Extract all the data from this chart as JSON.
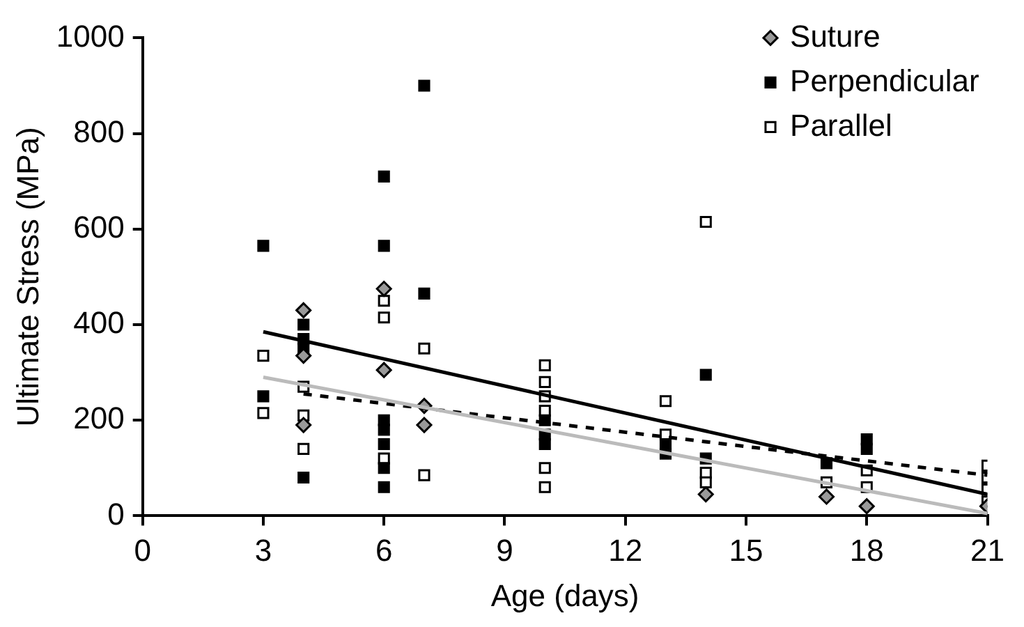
{
  "chart_data": {
    "type": "scatter",
    "xlabel": "Age (days)",
    "ylabel": "Ultimate Stress (MPa)",
    "xlim": [
      0,
      21
    ],
    "xticks": [
      0,
      3,
      6,
      9,
      12,
      15,
      18,
      21
    ],
    "ylim": [
      0,
      1000
    ],
    "yticks": [
      0,
      200,
      400,
      600,
      800,
      1000
    ],
    "grid": false,
    "legend": "top right",
    "series": [
      {
        "name": "Suture",
        "color": "#999999",
        "marker": "diamond",
        "x": [
          4,
          4,
          4,
          6,
          6,
          7,
          7,
          14,
          17,
          18,
          21
        ],
        "values": [
          430,
          335,
          190,
          475,
          305,
          230,
          190,
          45,
          40,
          20,
          20
        ]
      },
      {
        "name": "Perpendicular",
        "color": "#000000",
        "marker": "square",
        "x": [
          3,
          3,
          4,
          4,
          4,
          4,
          6,
          6,
          6,
          6,
          6,
          6,
          6,
          7,
          7,
          10,
          10,
          10,
          13,
          13,
          14,
          14,
          17,
          18,
          18
        ],
        "values": [
          565,
          250,
          400,
          370,
          350,
          80,
          710,
          565,
          200,
          180,
          150,
          100,
          60,
          900,
          465,
          200,
          170,
          150,
          150,
          130,
          295,
          120,
          110,
          160,
          140
        ]
      },
      {
        "name": "Parallel",
        "color": "#ffffff",
        "marker": "square",
        "x": [
          3,
          3,
          4,
          4,
          4,
          6,
          6,
          6,
          7,
          7,
          10,
          10,
          10,
          10,
          10,
          10,
          13,
          13,
          14,
          14,
          14,
          17,
          18,
          18,
          21,
          21,
          21,
          21
        ],
        "values": [
          335,
          215,
          270,
          210,
          140,
          450,
          415,
          120,
          350,
          85,
          315,
          280,
          250,
          220,
          100,
          60,
          240,
          170,
          615,
          90,
          70,
          70,
          95,
          60,
          105,
          80,
          55,
          30
        ]
      },
      {
        "type": "line",
        "color": "#000000",
        "line_style": "solid",
        "marker": "none",
        "x": [
          3,
          21
        ],
        "values": [
          385,
          45
        ]
      },
      {
        "type": "line",
        "color": "#bbbbbb",
        "line_style": "solid",
        "marker": "none",
        "x": [
          3,
          21
        ],
        "values": [
          290,
          5
        ]
      },
      {
        "type": "line",
        "color": "#000000",
        "line_style": "dashed",
        "marker": "none",
        "x": [
          4,
          21
        ],
        "values": [
          255,
          85
        ]
      }
    ]
  }
}
